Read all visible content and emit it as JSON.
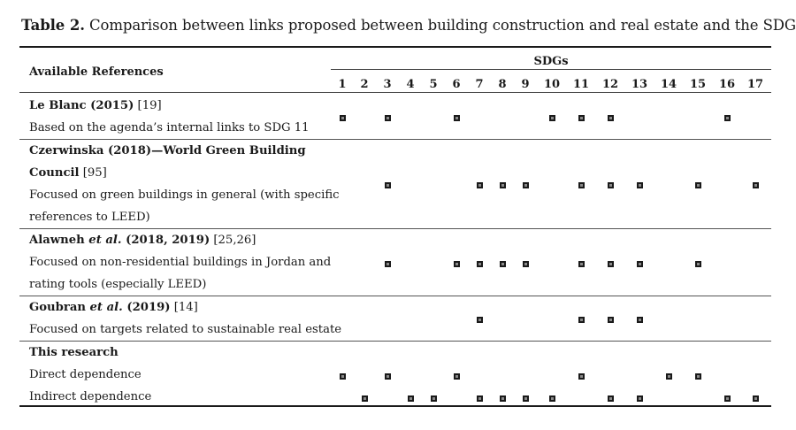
{
  "caption": {
    "label": "Table 2.",
    "text": " Comparison between links proposed between building construction and real estate and the SDGs."
  },
  "header": {
    "available_references": "Available References",
    "sdgs": "SDGs",
    "columns": [
      "1",
      "2",
      "3",
      "4",
      "5",
      "6",
      "7",
      "8",
      "9",
      "10",
      "11",
      "12",
      "13",
      "14",
      "15",
      "16",
      "17"
    ]
  },
  "rows": [
    {
      "lines": [
        {
          "bold_prefix": "Le Blanc (2015)",
          "rest": " [19]"
        },
        {
          "plain": "Based on the agenda’s internal links to SDG 11"
        }
      ],
      "sdgs": [
        1,
        3,
        6,
        10,
        11,
        12,
        16
      ]
    },
    {
      "lines": [
        {
          "bold_prefix": "Czerwinska (2018)—World Green Building",
          "rest": ""
        },
        {
          "bold_prefix": "Council",
          "rest": " [95]"
        },
        {
          "plain": "Focused on green buildings in general (with specific"
        },
        {
          "plain": "references to LEED)"
        }
      ],
      "sdgs": [
        3,
        7,
        8,
        9,
        11,
        12,
        13,
        15,
        17
      ]
    },
    {
      "lines": [
        {
          "bold_prefix": "Alawneh",
          "italic": " et al.",
          "bold_suffix": " (2018, 2019)",
          "rest": " [25,26]"
        },
        {
          "plain": "Focused on non-residential buildings in Jordan and"
        },
        {
          "plain": "rating tools (especially LEED)"
        }
      ],
      "sdgs": [
        3,
        6,
        7,
        8,
        9,
        11,
        12,
        13,
        15
      ]
    },
    {
      "lines": [
        {
          "bold_prefix": "Goubran",
          "italic": " et al.",
          "bold_suffix": " (2019)",
          "rest": " [14]"
        },
        {
          "plain": "Focused on targets related to sustainable real estate"
        }
      ],
      "sdgs": [
        7,
        11,
        12,
        13
      ]
    },
    {
      "lines": [
        {
          "bold_prefix": "This research",
          "rest": ""
        }
      ],
      "sdgs": []
    },
    {
      "lines": [
        {
          "plain": "Direct dependence"
        }
      ],
      "sdgs": [
        1,
        3,
        6,
        11,
        14,
        15
      ]
    },
    {
      "lines": [
        {
          "plain": "Indirect dependence"
        }
      ],
      "sdgs": [
        2,
        4,
        5,
        7,
        8,
        9,
        10,
        12,
        13,
        16,
        17
      ]
    }
  ]
}
